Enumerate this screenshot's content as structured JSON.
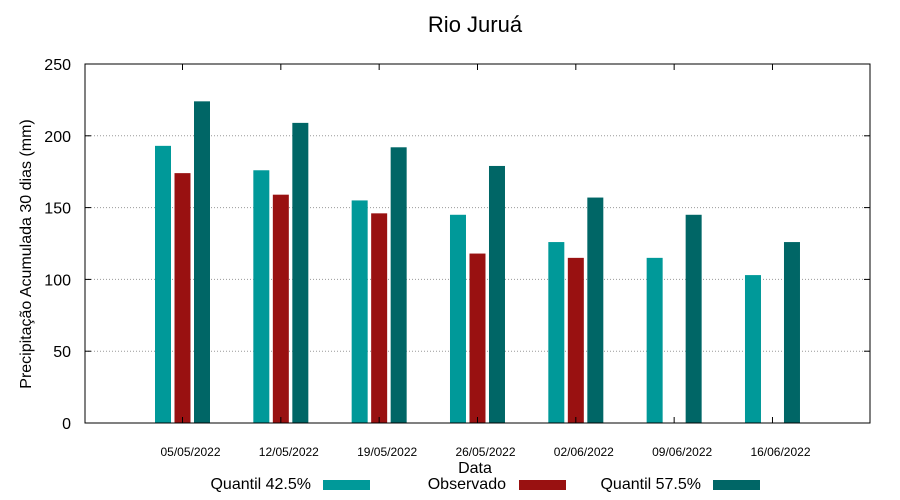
{
  "chart_data": {
    "type": "bar",
    "title": "Rio Juruá",
    "xlabel": "Data",
    "ylabel": "Precipitação Acumulada 30 dias (mm)",
    "ylim": [
      0,
      250
    ],
    "yticks": [
      0,
      50,
      100,
      150,
      200,
      250
    ],
    "grid": true,
    "legend_position": "bottom",
    "categories": [
      "05/05/2022",
      "12/05/2022",
      "19/05/2022",
      "26/05/2022",
      "02/06/2022",
      "09/06/2022",
      "16/06/2022"
    ],
    "series": [
      {
        "name": "Quantil 42.5%",
        "color": "#009999",
        "values": [
          193,
          176,
          155,
          145,
          126,
          115,
          103
        ]
      },
      {
        "name": "Observado",
        "color": "#991111",
        "values": [
          174,
          159,
          146,
          118,
          115,
          null,
          null
        ]
      },
      {
        "name": "Quantil 57.5%",
        "color": "#006666",
        "values": [
          224,
          209,
          192,
          179,
          157,
          145,
          126
        ]
      }
    ]
  }
}
